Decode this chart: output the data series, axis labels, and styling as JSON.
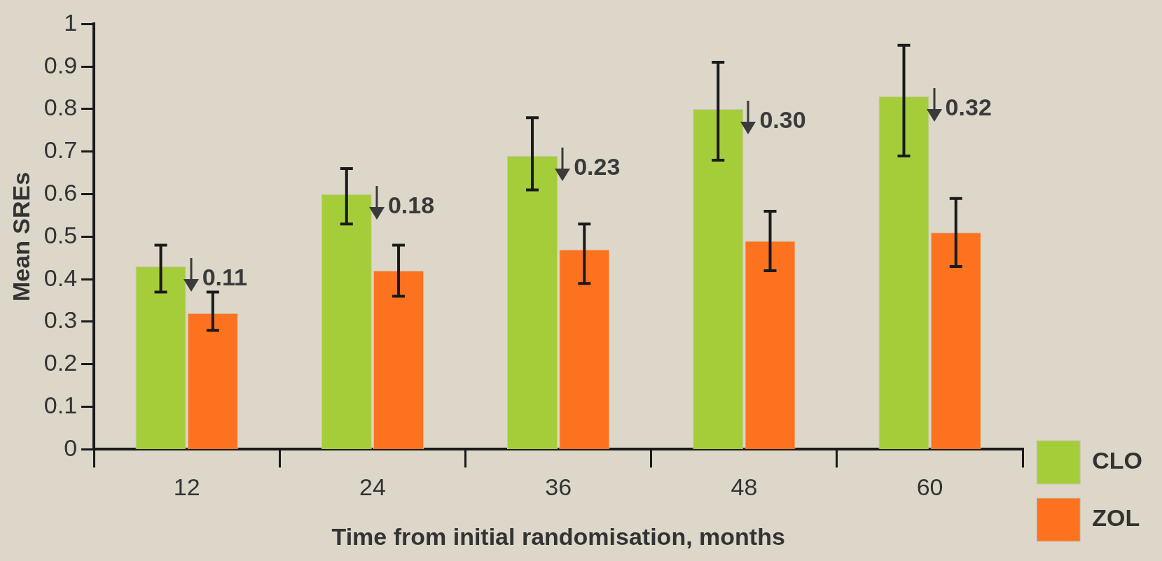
{
  "chart_data": {
    "type": "bar",
    "xlabel": "Time from initial randomisation, months",
    "ylabel": "Mean SREs",
    "categories": [
      "12",
      "24",
      "36",
      "48",
      "60"
    ],
    "series": [
      {
        "name": "CLO",
        "color": "#a5cd39",
        "values": [
          0.43,
          0.6,
          0.69,
          0.8,
          0.83
        ],
        "errors": [
          [
            0.37,
            0.48
          ],
          [
            0.53,
            0.66
          ],
          [
            0.61,
            0.78
          ],
          [
            0.68,
            0.91
          ],
          [
            0.69,
            0.95
          ]
        ]
      },
      {
        "name": "ZOL",
        "color": "#fc721e",
        "values": [
          0.32,
          0.42,
          0.47,
          0.49,
          0.51
        ],
        "errors": [
          [
            0.28,
            0.37
          ],
          [
            0.36,
            0.48
          ],
          [
            0.39,
            0.53
          ],
          [
            0.42,
            0.56
          ],
          [
            0.43,
            0.59
          ]
        ]
      }
    ],
    "annotations": [
      "0.11",
      "0.18",
      "0.23",
      "0.30",
      "0.32"
    ],
    "ylim": [
      0,
      1
    ],
    "yticks": [
      0,
      0.1,
      0.2,
      0.3,
      0.4,
      0.5,
      0.6,
      0.7,
      0.8,
      0.9,
      1
    ],
    "grid": false,
    "legend": "right"
  }
}
